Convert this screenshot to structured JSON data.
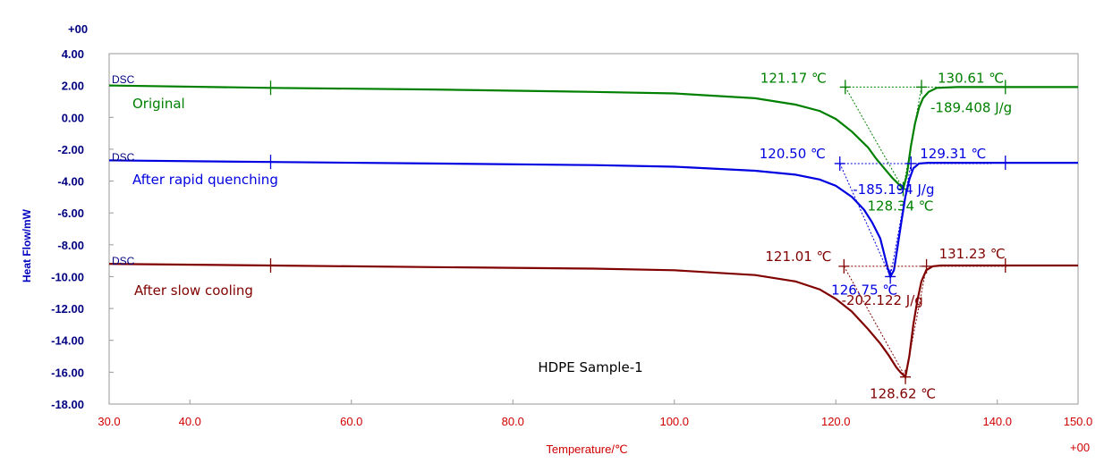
{
  "chart_data": {
    "type": "line",
    "title": "",
    "xlabel": "Temperature/℃",
    "ylabel": "Heat Flow/mW",
    "x_exponent_label": "+00",
    "y_exponent_label": "+00",
    "xlim": [
      30.0,
      150.0
    ],
    "ylim": [
      -18.0,
      4.0
    ],
    "x_ticks": [
      "30.0",
      "40.0",
      "60.0",
      "80.0",
      "100.0",
      "120.0",
      "140.0",
      "150.0"
    ],
    "y_ticks": [
      "4.00",
      "2.00",
      "0.00",
      "-2.00",
      "-4.00",
      "-6.00",
      "-8.00",
      "-10.00",
      "-12.00",
      "-14.00",
      "-16.00",
      "-18.00"
    ],
    "grid": false,
    "sample_label": "HDPE  Sample-1",
    "series": [
      {
        "name": "Original",
        "signal": "DSC",
        "color": "#008000",
        "x": [
          30,
          50,
          70,
          90,
          100,
          110,
          115,
          118,
          120,
          122,
          124,
          125,
          126,
          127,
          128,
          128.34,
          128.8,
          129.3,
          129.8,
          130.3,
          130.8,
          131.5,
          132.5,
          135,
          140,
          150
        ],
        "y": [
          2.0,
          1.85,
          1.75,
          1.6,
          1.5,
          1.2,
          0.8,
          0.4,
          -0.1,
          -0.9,
          -1.9,
          -2.6,
          -3.2,
          -3.8,
          -4.3,
          -4.5,
          -3.6,
          -1.8,
          -0.4,
          0.6,
          1.2,
          1.6,
          1.85,
          1.9,
          1.9,
          1.9
        ],
        "onset_line": {
          "x": [
            121.17,
            130.61
          ],
          "y": [
            1.9,
            1.9
          ]
        },
        "annotations": {
          "onset": "121.17 ℃",
          "endset": "130.61 ℃",
          "peak": "128.34 ℃",
          "enthalpy": "-189.408 J/g"
        }
      },
      {
        "name": "After rapid quenching",
        "signal": "DSC",
        "color": "#0000e0",
        "x": [
          30,
          50,
          70,
          90,
          100,
          110,
          115,
          118,
          120,
          122,
          123.5,
          124.5,
          125.5,
          126,
          126.4,
          126.75,
          127.2,
          127.6,
          128.1,
          128.6,
          129.1,
          129.6,
          130.3,
          131.5,
          135,
          140,
          150
        ],
        "y": [
          -2.7,
          -2.8,
          -2.9,
          -3.0,
          -3.1,
          -3.35,
          -3.6,
          -3.9,
          -4.3,
          -5.0,
          -5.8,
          -6.6,
          -7.6,
          -8.6,
          -9.4,
          -10.0,
          -9.6,
          -8.3,
          -6.6,
          -5.0,
          -3.9,
          -3.2,
          -2.9,
          -2.85,
          -2.85,
          -2.85,
          -2.85
        ],
        "onset_line": {
          "x": [
            120.5,
            129.31
          ],
          "y": [
            -2.9,
            -2.9
          ]
        },
        "annotations": {
          "onset": "120.50 ℃",
          "endset": "129.31 ℃",
          "peak": "126.75 ℃",
          "enthalpy": "-185.194 J/g"
        }
      },
      {
        "name": "After slow cooling",
        "signal": "DSC",
        "color": "#800000",
        "x": [
          30,
          50,
          70,
          90,
          100,
          110,
          115,
          118,
          120,
          122,
          124,
          125.5,
          126.5,
          127.5,
          128,
          128.62,
          129.1,
          129.6,
          130.1,
          130.6,
          131.2,
          132,
          133,
          135,
          140,
          150
        ],
        "y": [
          -9.2,
          -9.3,
          -9.4,
          -9.5,
          -9.6,
          -9.9,
          -10.3,
          -10.8,
          -11.4,
          -12.2,
          -13.3,
          -14.2,
          -14.9,
          -15.7,
          -16.0,
          -16.3,
          -15.0,
          -13.0,
          -11.5,
          -10.3,
          -9.6,
          -9.35,
          -9.3,
          -9.3,
          -9.3,
          -9.3
        ],
        "onset_line": {
          "x": [
            121.01,
            131.23
          ],
          "y": [
            -9.35,
            -9.35
          ]
        },
        "annotations": {
          "onset": "121.01 ℃",
          "endset": "131.23 ℃",
          "peak": "128.62 ℃",
          "enthalpy": "-202.122 J/g"
        }
      }
    ]
  }
}
